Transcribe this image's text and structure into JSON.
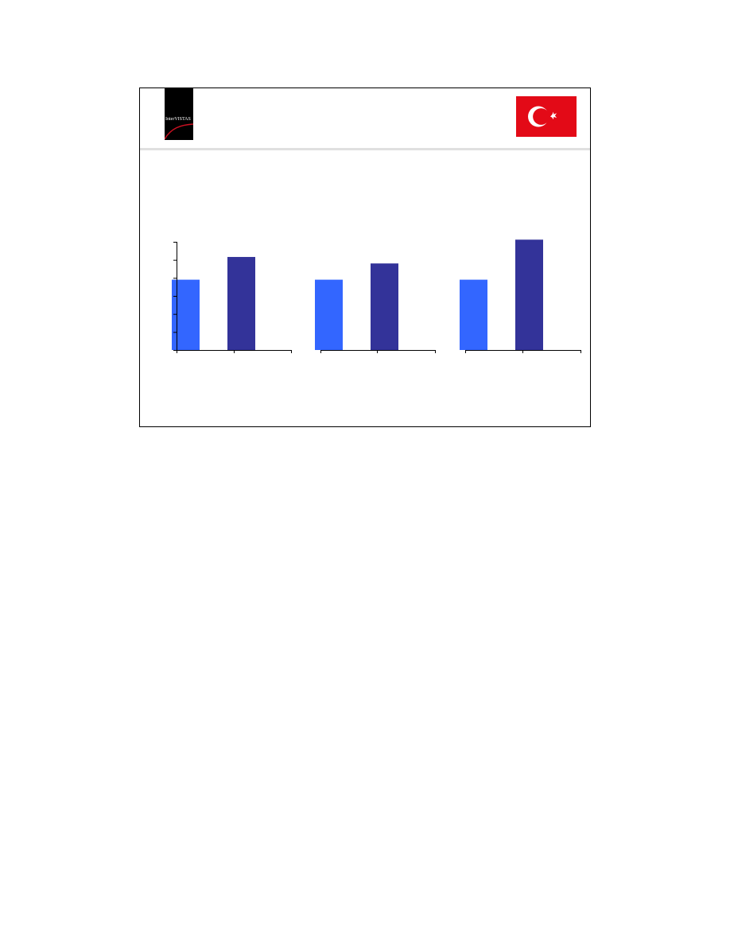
{
  "logo": {
    "text": "InterVISTAS",
    "icon": "intervistas-logo"
  },
  "flag": {
    "icon": "turkey-flag-icon",
    "colors": {
      "red": "#e30a17",
      "white": "#ffffff"
    }
  },
  "colors": {
    "series_a": "#3366ff",
    "series_b": "#333399",
    "axis": "#000000",
    "header_rule": "#e0e0e0"
  },
  "chart_data": [
    {
      "type": "bar",
      "categories": [
        "",
        ""
      ],
      "values": [
        65,
        86
      ],
      "ylim": [
        0,
        100
      ],
      "xlabel": "",
      "ylabel": ""
    },
    {
      "type": "bar",
      "categories": [
        "",
        ""
      ],
      "values": [
        65,
        80
      ],
      "ylim": [
        0,
        100
      ],
      "xlabel": "",
      "ylabel": ""
    },
    {
      "type": "bar",
      "categories": [
        "",
        ""
      ],
      "values": [
        65,
        102
      ],
      "ylim": [
        0,
        100
      ],
      "xlabel": "",
      "ylabel": ""
    }
  ]
}
